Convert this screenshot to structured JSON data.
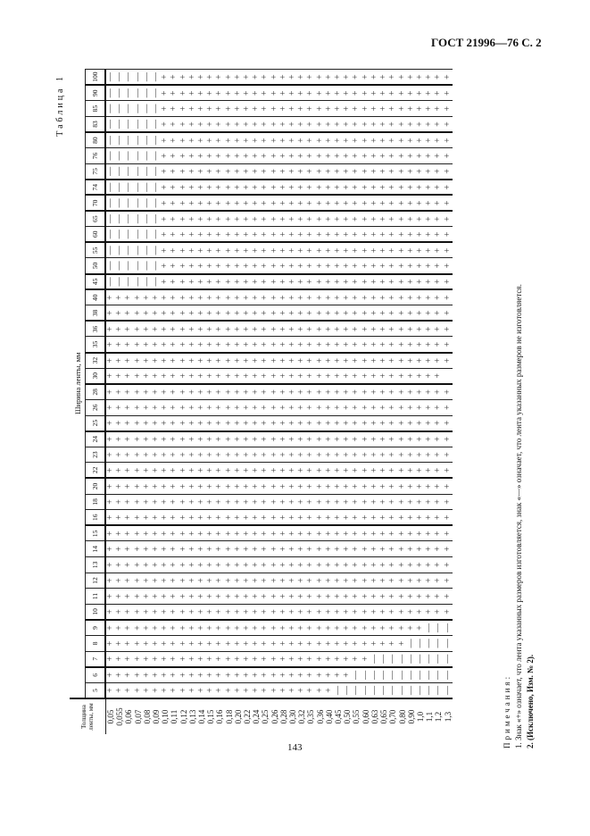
{
  "header": {
    "doc_title": "ГОСТ 21996—76 С. 2"
  },
  "footer": {
    "page_number": "143"
  },
  "table": {
    "caption": "Таблица 1",
    "thickness_header": "Толщина ленты, мм",
    "width_header": "Ширина ленты, мм",
    "widths": [
      "5",
      "6",
      "7",
      "8",
      "9",
      "10",
      "11",
      "12",
      "13",
      "14",
      "15",
      "16",
      "18",
      "20",
      "22",
      "23",
      "24",
      "25",
      "26",
      "28",
      "30",
      "32",
      "35",
      "36",
      "38",
      "40",
      "45",
      "50",
      "55",
      "60",
      "65",
      "70",
      "74",
      "75",
      "76",
      "80",
      "83",
      "85",
      "90",
      "100"
    ],
    "thicknesses": [
      "0,05",
      "0,055",
      "0,06",
      "0,07",
      "0,08",
      "0,09",
      "0,10",
      "0,11",
      "0,12",
      "0,13",
      "0,14",
      "0,15",
      "0,16",
      "0,18",
      "0,20",
      "0,22",
      "0,24",
      "0,25",
      "0,26",
      "0,28",
      "0,30",
      "0,32",
      "0,35",
      "0,36",
      "0,40",
      "0,45",
      "0,50",
      "0,55",
      "0,60",
      "0,63",
      "0,65",
      "0,70",
      "0,80",
      "0,90",
      "1,0",
      "1,1",
      "1,2",
      "1,3"
    ],
    "symbols": {
      "+": "+",
      "-": "—",
      " ": ""
    },
    "cells": [
      "++++++++++++++++++++++++++--------------",
      "++++++++++++++++++++++++++--------------",
      "++++++++++++++++++++++++++--------------",
      "++++++++++++++++++++++++++--------------",
      "++++++++++++++++++++++++++--------------",
      "++++++++++++++++++++++++++--------------",
      "++++++++++++++++++++++++++++++++++++++++",
      "++++++++++++++++++++++++++++++++++++++++",
      "++++++++++++++++++++++++++++++++++++++++",
      "++++++++++++++++++++++++++++++++++++++++",
      "++++++++++++++++++++++++++++++++++++++++",
      "++++++++++++++++++++++++++++++++++++++++",
      "++++++++++++++++++++++++++++++++++++++++",
      "++++++++++++++++++++++++++++++++++++++++",
      "++++++++++++++++++++++++++++++++++++++++",
      "++++++++++++++++++++++++++++++++++++++++",
      "++++++++++++++++++++++++++++++++++++++++",
      "++++++++++++++++++++++++++++++++++++++++",
      "++++++++++++++++++++++++++++++++++++++++",
      "++++++++++++++++++++++++++++++++++++++++",
      "++++++++++++++++++++++++++++++++++++++++",
      "++++++++++++++++++++++++++++++++++++++++",
      "++++++++++++++++++++++++++++++++++++++++",
      "++++++++++++++++++++++++++++++++++++++++",
      "++++++++++++++++++++++++++++++++++++++++",
      "-+++++++++++++++++++++++++++++++++++++++",
      "-+++++++++++++++++++++++++++++++++++++++",
      "--++++++++++++++++++++++++++++++++++++++",
      "--++++++++++++++++++++++++++++++++++++++",
      "---+++++++++++++++++++++++++++++++++++++",
      "---+++++++++++++++++++++++++++++++++++++",
      "---+++++++++++++++++++++++++++++++++++++",
      "---+++++++++++++++++++++++++++++++++++++",
      "----++++++++++++++++++++++++++++++++++++",
      "----++++++++++++++++++++++++++++++++++++",
      "-----+++++++++++++++++++++++++++++++++++",
      "-----+++++++++++++++++++++++++++++++++++",
      "-----+++++++++++++++ +++++++++++++++++++"
    ]
  },
  "notes": {
    "title": "Примечания:",
    "items": [
      "1. Знак «+» означает, что лента указанных размеров изготовляется, знак «—» означает, что лента указанных размеров не изготовляется.",
      "2. (Исключено, Изм. № 2)."
    ]
  }
}
